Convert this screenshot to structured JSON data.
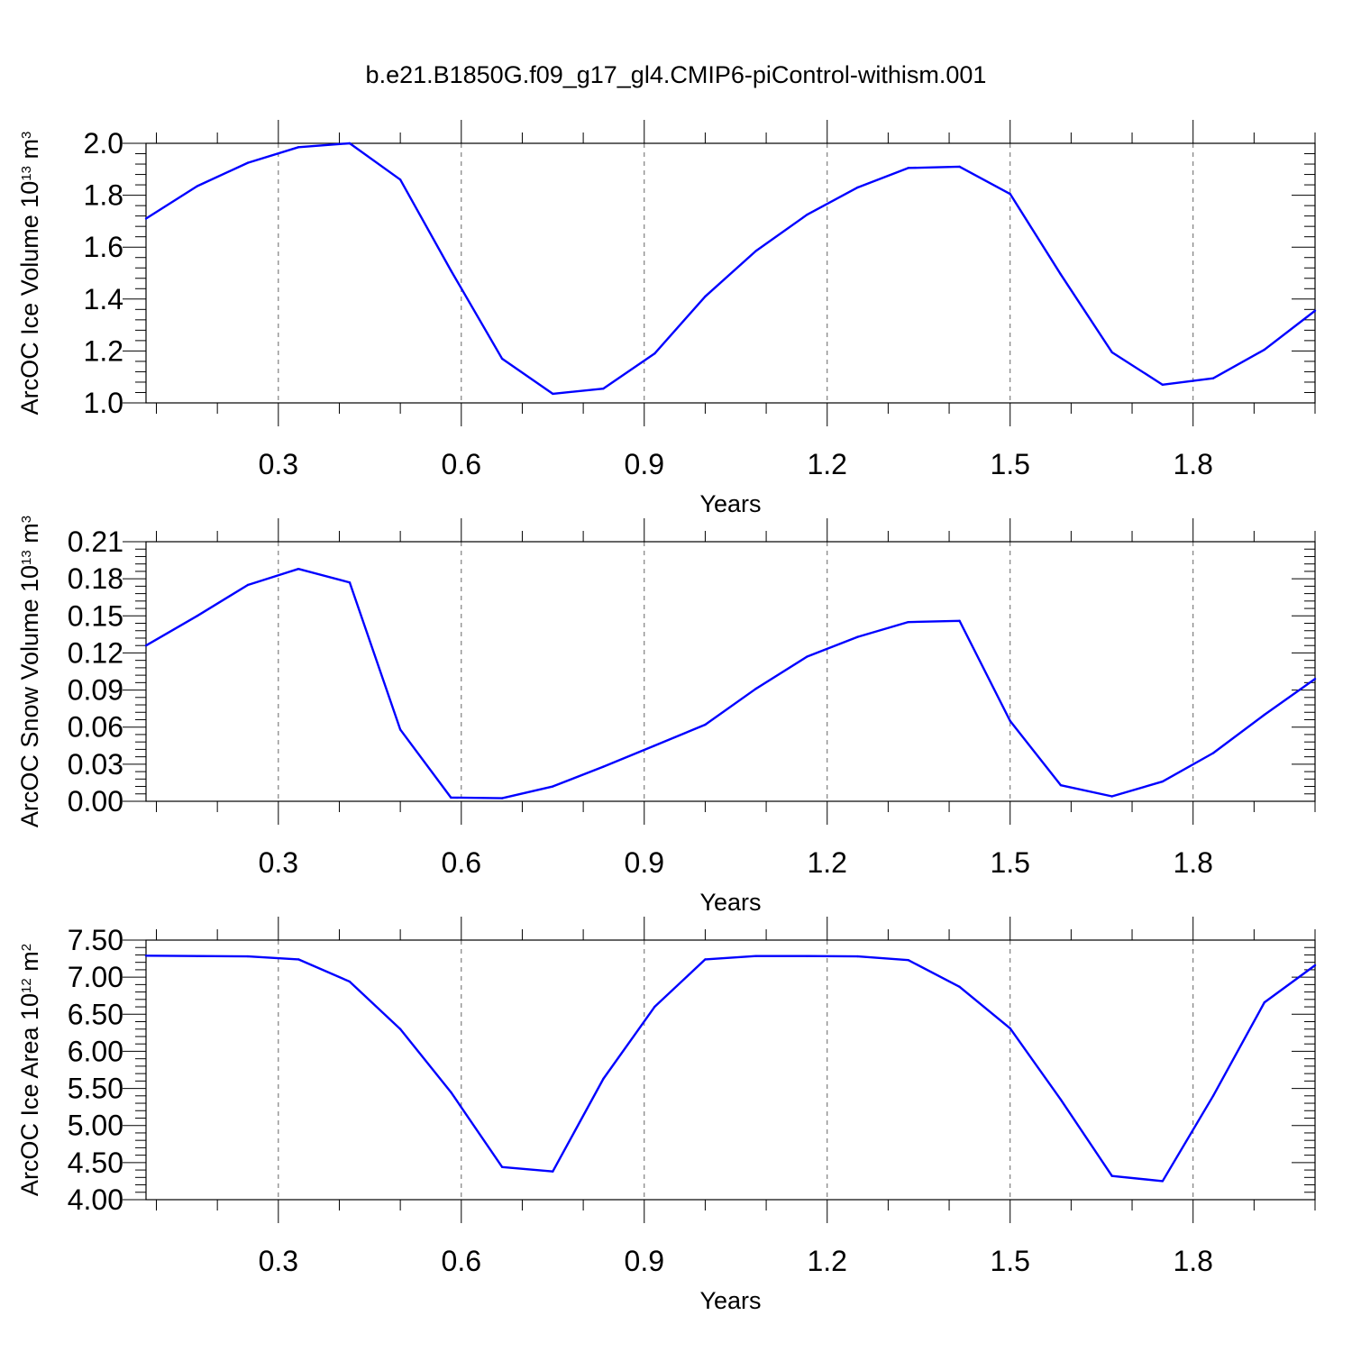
{
  "figure": {
    "title": "b.e21.B1850G.f09_g17_gl4.CMIP6-piControl-withism.001"
  },
  "colors": {
    "series": "#0000ff",
    "grid": "#666666",
    "axis": "#000000"
  },
  "chart_data": [
    {
      "type": "line",
      "name": "ice-volume",
      "xlabel": "Years",
      "ylabel": {
        "prefix": "ArcOC Ice Volume 10",
        "exp": "13",
        "unit": " m",
        "unit_exp": "3"
      },
      "xlim": [
        0.083,
        2.0
      ],
      "ylim": [
        1.0,
        2.0
      ],
      "xticks": [
        0.3,
        0.6,
        0.9,
        1.2,
        1.5,
        1.8
      ],
      "xtick_labels": [
        "0.3",
        "0.6",
        "0.9",
        "1.2",
        "1.5",
        "1.8"
      ],
      "yticks": [
        1.0,
        1.2,
        1.4,
        1.6,
        1.8,
        2.0
      ],
      "ytick_labels": [
        "1.0",
        "1.2",
        "1.4",
        "1.6",
        "1.8",
        "2.0"
      ],
      "grid": "vertical-dashed",
      "x": [
        0.083,
        0.167,
        0.25,
        0.333,
        0.417,
        0.5,
        0.583,
        0.667,
        0.75,
        0.833,
        0.917,
        1.0,
        1.083,
        1.167,
        1.25,
        1.333,
        1.417,
        1.5,
        1.583,
        1.667,
        1.75,
        1.833,
        1.917,
        2.0
      ],
      "y": [
        1.71,
        1.835,
        1.925,
        1.985,
        2.0,
        1.86,
        1.51,
        1.17,
        1.035,
        1.055,
        1.19,
        1.41,
        1.585,
        1.725,
        1.83,
        1.905,
        1.91,
        1.805,
        1.495,
        1.195,
        1.07,
        1.095,
        1.205,
        1.355
      ]
    },
    {
      "type": "line",
      "name": "snow-volume",
      "xlabel": "Years",
      "ylabel": {
        "prefix": "ArcOC Snow Volume 10",
        "exp": "13",
        "unit": " m",
        "unit_exp": "3"
      },
      "xlim": [
        0.083,
        2.0
      ],
      "ylim": [
        0.0,
        0.21
      ],
      "xticks": [
        0.3,
        0.6,
        0.9,
        1.2,
        1.5,
        1.8
      ],
      "xtick_labels": [
        "0.3",
        "0.6",
        "0.9",
        "1.2",
        "1.5",
        "1.8"
      ],
      "yticks": [
        0.0,
        0.03,
        0.06,
        0.09,
        0.12,
        0.15,
        0.18,
        0.21
      ],
      "ytick_labels": [
        "0.00",
        "0.03",
        "0.06",
        "0.09",
        "0.12",
        "0.15",
        "0.18",
        "0.21"
      ],
      "grid": "vertical-dashed",
      "x": [
        0.083,
        0.167,
        0.25,
        0.333,
        0.417,
        0.5,
        0.583,
        0.667,
        0.75,
        0.833,
        0.917,
        1.0,
        1.083,
        1.167,
        1.25,
        1.333,
        1.417,
        1.5,
        1.583,
        1.667,
        1.75,
        1.833,
        1.917,
        2.0
      ],
      "y": [
        0.126,
        0.15,
        0.175,
        0.188,
        0.177,
        0.058,
        0.003,
        0.0025,
        0.012,
        0.028,
        0.045,
        0.062,
        0.091,
        0.117,
        0.133,
        0.145,
        0.146,
        0.065,
        0.013,
        0.004,
        0.016,
        0.039,
        0.07,
        0.099
      ]
    },
    {
      "type": "line",
      "name": "ice-area",
      "xlabel": "Years",
      "ylabel": {
        "prefix": "ArcOC Ice Area 10",
        "exp": "12",
        "unit": " m",
        "unit_exp": "2"
      },
      "xlim": [
        0.083,
        2.0
      ],
      "ylim": [
        4.0,
        7.5
      ],
      "xticks": [
        0.3,
        0.6,
        0.9,
        1.2,
        1.5,
        1.8
      ],
      "xtick_labels": [
        "0.3",
        "0.6",
        "0.9",
        "1.2",
        "1.5",
        "1.8"
      ],
      "yticks": [
        4.0,
        4.5,
        5.0,
        5.5,
        6.0,
        6.5,
        7.0,
        7.5
      ],
      "ytick_labels": [
        "4.00",
        "4.50",
        "5.00",
        "5.50",
        "6.00",
        "6.50",
        "7.00",
        "7.50"
      ],
      "grid": "vertical-dashed",
      "x": [
        0.083,
        0.167,
        0.25,
        0.333,
        0.417,
        0.5,
        0.583,
        0.667,
        0.75,
        0.833,
        0.917,
        1.0,
        1.083,
        1.167,
        1.25,
        1.333,
        1.417,
        1.5,
        1.583,
        1.667,
        1.75,
        1.833,
        1.917,
        2.0
      ],
      "y": [
        7.29,
        7.285,
        7.28,
        7.24,
        6.94,
        6.3,
        5.45,
        4.44,
        4.38,
        5.63,
        6.6,
        7.24,
        7.285,
        7.285,
        7.28,
        7.23,
        6.87,
        6.31,
        5.35,
        4.32,
        4.25,
        5.4,
        6.66,
        7.16
      ]
    }
  ]
}
